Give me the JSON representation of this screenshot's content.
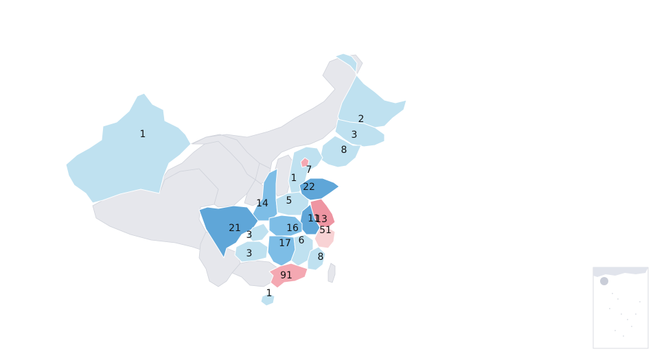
{
  "map": {
    "colors": {
      "empty": "#e6e7ec",
      "low": "#bfe1f0",
      "mid": "#7dbde6",
      "high": "#5fa6d8",
      "peak_blue": "#4d93cf",
      "pink_light": "#f8d2d4",
      "pink": "#f4a8b2",
      "pink_strong": "#ee95a2"
    },
    "regions": [
      {
        "id": "xinjiang",
        "value": "1"
      },
      {
        "id": "heilongjiang",
        "value": "2"
      },
      {
        "id": "jilin",
        "value": "3"
      },
      {
        "id": "liaoning",
        "value": "8"
      },
      {
        "id": "beijing",
        "value": "7"
      },
      {
        "id": "hebei",
        "value": "1"
      },
      {
        "id": "shandong",
        "value": "22"
      },
      {
        "id": "shaanxi",
        "value": "14"
      },
      {
        "id": "henan",
        "value": "5"
      },
      {
        "id": "jiangsu",
        "value": "13"
      },
      {
        "id": "anhui",
        "value": "11"
      },
      {
        "id": "shanghai",
        "value": "51"
      },
      {
        "id": "sichuan",
        "value": "21"
      },
      {
        "id": "chongqing",
        "value": "3"
      },
      {
        "id": "hubei",
        "value": "16"
      },
      {
        "id": "guizhou",
        "value": "3"
      },
      {
        "id": "hunan",
        "value": "17"
      },
      {
        "id": "jiangxi",
        "value": "6"
      },
      {
        "id": "fujian",
        "value": "8"
      },
      {
        "id": "guangdong",
        "value": "91"
      },
      {
        "id": "hainan",
        "value": "1"
      }
    ]
  }
}
